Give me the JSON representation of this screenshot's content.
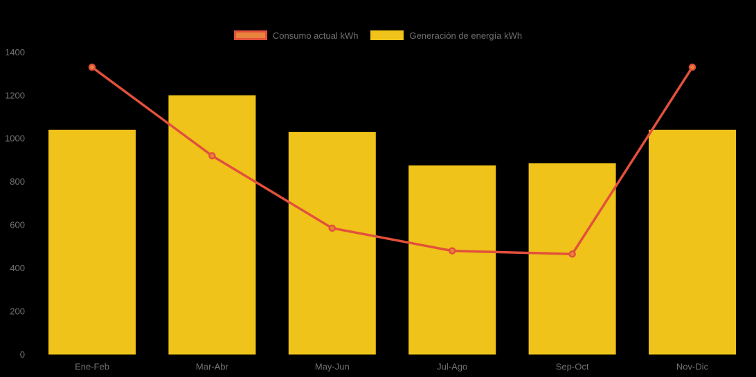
{
  "chart_data": {
    "type": "bar",
    "subtype": "bar-line-combo",
    "title": "",
    "xlabel": "",
    "ylabel": "",
    "categories": [
      "Ene-Feb",
      "Mar-Abr",
      "May-Jun",
      "Jul-Ago",
      "Sep-Oct",
      "Nov-Dic"
    ],
    "series": [
      {
        "name": "Consumo actual kWh",
        "type": "line",
        "values": [
          1330,
          920,
          585,
          480,
          465,
          1330
        ]
      },
      {
        "name": "Generación de energía kWh",
        "type": "bar",
        "values": [
          1040,
          1200,
          1030,
          875,
          885,
          1040
        ]
      }
    ],
    "ylim": [
      0,
      1400
    ],
    "yticks": [
      0,
      200,
      400,
      600,
      800,
      1000,
      1200,
      1400
    ],
    "grid": false,
    "legend_position": "top-center",
    "colors": {
      "background": "#000000",
      "bar_fill": "#EFC319",
      "line_stroke": "#E2503C",
      "marker_fill": "#E8843C",
      "marker_stroke": "#E2503C",
      "axis_text": "#737373",
      "legend_text": "#707070"
    }
  },
  "legend": {
    "items": [
      {
        "label": "Consumo actual kWh"
      },
      {
        "label": "Generación de energía kWh"
      }
    ]
  }
}
